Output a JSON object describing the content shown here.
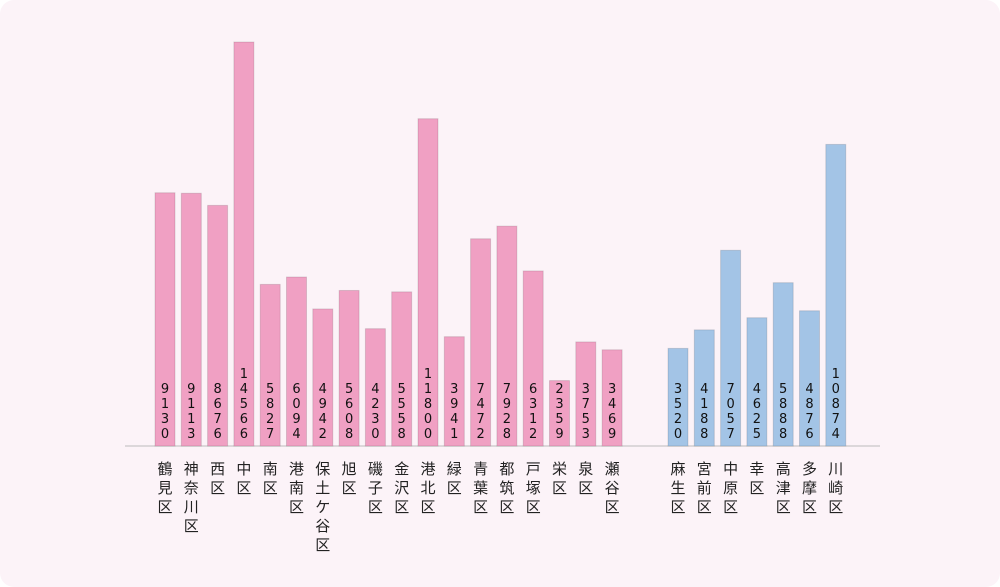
{
  "colors": {
    "yokohama": "#f0a0c3",
    "kawasaki": "#a3c4e6",
    "background": "#fcf3f8"
  },
  "chart_data": {
    "type": "bar",
    "ylim": [
      0,
      15000
    ],
    "grid": false,
    "groups": [
      {
        "color_key": "yokohama",
        "categories": [
          "鶴見区",
          "神奈川区",
          "西区",
          "中区",
          "南区",
          "港南区",
          "保土ケ谷区",
          "旭区",
          "磯子区",
          "金沢区",
          "港北区",
          "緑区",
          "青葉区",
          "都筑区",
          "戸塚区",
          "栄区",
          "泉区",
          "瀬谷区"
        ],
        "values": [
          9130,
          9113,
          8676,
          14566,
          5827,
          6094,
          4942,
          5608,
          4230,
          5558,
          11800,
          3941,
          7472,
          7928,
          6312,
          2359,
          3753,
          3469
        ]
      },
      {
        "color_key": "kawasaki",
        "categories": [
          "麻生区",
          "宮前区",
          "中原区",
          "幸区",
          "高津区",
          "多摩区",
          "川崎区"
        ],
        "values": [
          3520,
          4188,
          7057,
          4625,
          5888,
          4876,
          10874
        ]
      }
    ]
  }
}
